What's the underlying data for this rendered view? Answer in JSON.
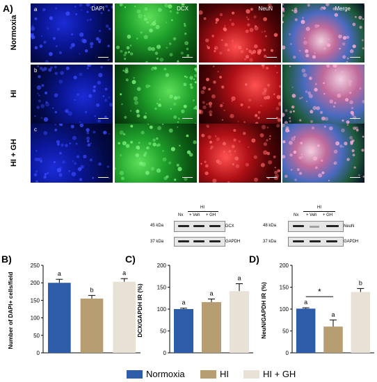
{
  "panelA": {
    "letter": "A)",
    "row_labels": [
      "Normoxia",
      "HI",
      "HI + GH"
    ],
    "row_tags": [
      "a",
      "b",
      "c"
    ],
    "channels": [
      "DAPI",
      "DCX",
      "NeuN",
      "Merge"
    ],
    "colors": {
      "DAPI": "#0a12a8",
      "DCX": "#21a030",
      "NeuN": "#c8141a",
      "Merge": "#6a5c84"
    }
  },
  "western": {
    "dcx": {
      "groups": [
        "Nx",
        "+ Veh",
        "+ GH"
      ],
      "hi_label": "HI",
      "markers": [
        "45 kDa",
        "37 kDa"
      ],
      "proteins": [
        "DCX",
        "GAPDH"
      ]
    },
    "neun": {
      "groups": [
        "Nx",
        "+ Veh",
        "+ GH"
      ],
      "hi_label": "HI",
      "markers": [
        "48 kDa",
        "37 kDa"
      ],
      "proteins": [
        "NeuN",
        "GAPDH"
      ]
    }
  },
  "chart_data": [
    {
      "type": "bar",
      "letter": "B)",
      "categories": [
        "Normoxia",
        "HI",
        "HI + GH"
      ],
      "values": [
        200,
        155,
        203
      ],
      "errors": [
        10,
        9,
        9
      ],
      "significance": [
        "a",
        "b",
        "a"
      ],
      "ylabel": "Number of DAPI+ cells/field",
      "ylim": [
        0,
        250
      ],
      "yticks": [
        "0",
        "50",
        "100",
        "150",
        "200",
        "250"
      ]
    },
    {
      "type": "bar",
      "letter": "C)",
      "categories": [
        "Normoxia",
        "HI",
        "HI + GH"
      ],
      "values": [
        100,
        116,
        141
      ],
      "errors": [
        2,
        7,
        17
      ],
      "significance": [
        "a",
        "a",
        "a"
      ],
      "ylabel": "DCX/GAPDH IR (%)",
      "ylim": [
        0,
        200
      ],
      "yticks": [
        "0",
        "50",
        "100",
        "150",
        "200"
      ]
    },
    {
      "type": "bar",
      "letter": "D)",
      "categories": [
        "Normoxia",
        "HI",
        "HI + GH"
      ],
      "values": [
        101,
        60,
        139
      ],
      "errors": [
        2,
        15,
        8
      ],
      "significance": [
        "a",
        "a",
        "b"
      ],
      "bracket": "*",
      "ylabel": "NeuN/GAPDH IR (%)",
      "ylim": [
        0,
        200
      ],
      "yticks": [
        "0",
        "50",
        "100",
        "150",
        "200"
      ]
    }
  ],
  "legend": {
    "items": [
      {
        "label": "Normoxia",
        "color": "#2e5ca8"
      },
      {
        "label": "HI",
        "color": "#b79e72"
      },
      {
        "label": "HI + GH",
        "color": "#e8e2d6"
      }
    ]
  }
}
